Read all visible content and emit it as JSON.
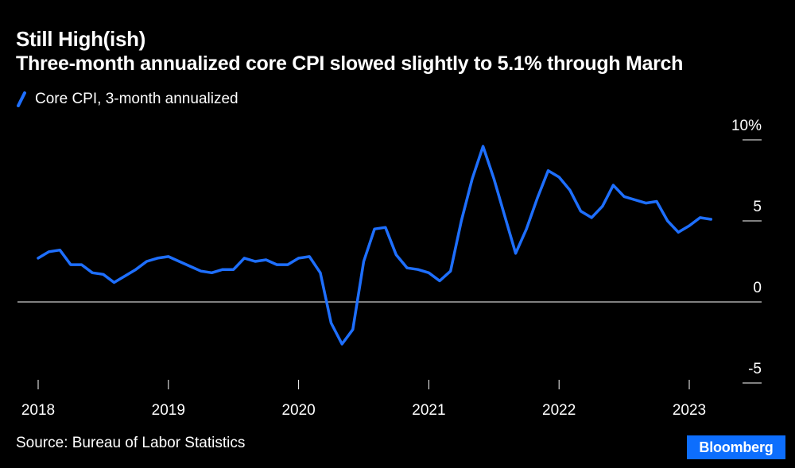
{
  "header": {
    "title": "Still High(ish)",
    "subtitle": "Three-month annualized core CPI slowed slightly to 5.1% through March"
  },
  "legend": {
    "label": "Core CPI, 3-month annualized"
  },
  "footer": {
    "source": "Source: Bureau of Labor Statistics",
    "brand": "Bloomberg"
  },
  "colors": {
    "series": "#1e6fff",
    "background": "#000000",
    "text": "#ffffff",
    "brand_bg": "#0d6efd"
  },
  "chart_data": {
    "type": "line",
    "title": "Still High(ish)",
    "xlabel": "",
    "ylabel": "",
    "x_start": 2018.0,
    "x_step": 0.0833333,
    "xlim": [
      2017.97,
      2023.3
    ],
    "ylim": [
      -5,
      10
    ],
    "y_ticks": [
      {
        "value": 10,
        "label": "10%"
      },
      {
        "value": 5,
        "label": "5"
      },
      {
        "value": 0,
        "label": "0"
      },
      {
        "value": -5,
        "label": "-5"
      }
    ],
    "x_ticks": [
      {
        "value": 2018,
        "label": "2018"
      },
      {
        "value": 2019,
        "label": "2019"
      },
      {
        "value": 2020,
        "label": "2020"
      },
      {
        "value": 2021,
        "label": "2021"
      },
      {
        "value": 2022,
        "label": "2022"
      },
      {
        "value": 2023,
        "label": "2023"
      }
    ],
    "series": [
      {
        "name": "Core CPI, 3-month annualized",
        "values": [
          2.7,
          3.1,
          3.2,
          2.3,
          2.3,
          1.8,
          1.7,
          1.2,
          1.6,
          2.0,
          2.5,
          2.7,
          2.8,
          2.5,
          2.2,
          1.9,
          1.8,
          2.0,
          2.0,
          2.7,
          2.5,
          2.6,
          2.3,
          2.3,
          2.7,
          2.8,
          1.8,
          -1.3,
          -2.6,
          -1.7,
          2.5,
          4.5,
          4.6,
          2.9,
          2.1,
          2.0,
          1.8,
          1.3,
          1.9,
          5.0,
          7.6,
          9.6,
          7.6,
          5.3,
          3.0,
          4.5,
          6.4,
          8.1,
          7.7,
          6.9,
          5.6,
          5.2,
          5.9,
          7.2,
          6.5,
          6.3,
          6.1,
          6.2,
          5.0,
          4.3,
          4.7,
          5.2,
          5.1
        ]
      }
    ]
  }
}
